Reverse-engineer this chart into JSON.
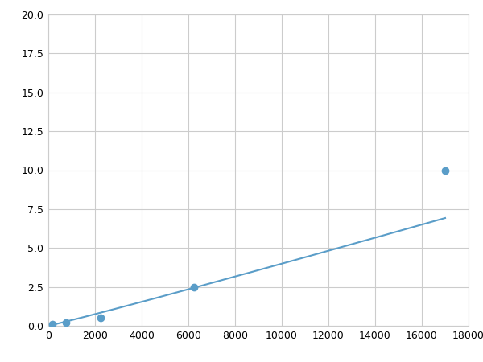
{
  "x": [
    188,
    750,
    2250,
    6250,
    17000
  ],
  "y": [
    0.1,
    0.2,
    0.5,
    2.5,
    10.0
  ],
  "line_color": "#5a9dc8",
  "marker_color": "#5a9dc8",
  "marker_size": 6,
  "xlim": [
    0,
    18000
  ],
  "ylim": [
    0,
    20.0
  ],
  "xticks": [
    0,
    2000,
    4000,
    6000,
    8000,
    10000,
    12000,
    14000,
    16000,
    18000
  ],
  "yticks": [
    0.0,
    2.5,
    5.0,
    7.5,
    10.0,
    12.5,
    15.0,
    17.5,
    20.0
  ],
  "grid_color": "#cccccc",
  "background_color": "#ffffff",
  "figure_bg": "#ffffff"
}
